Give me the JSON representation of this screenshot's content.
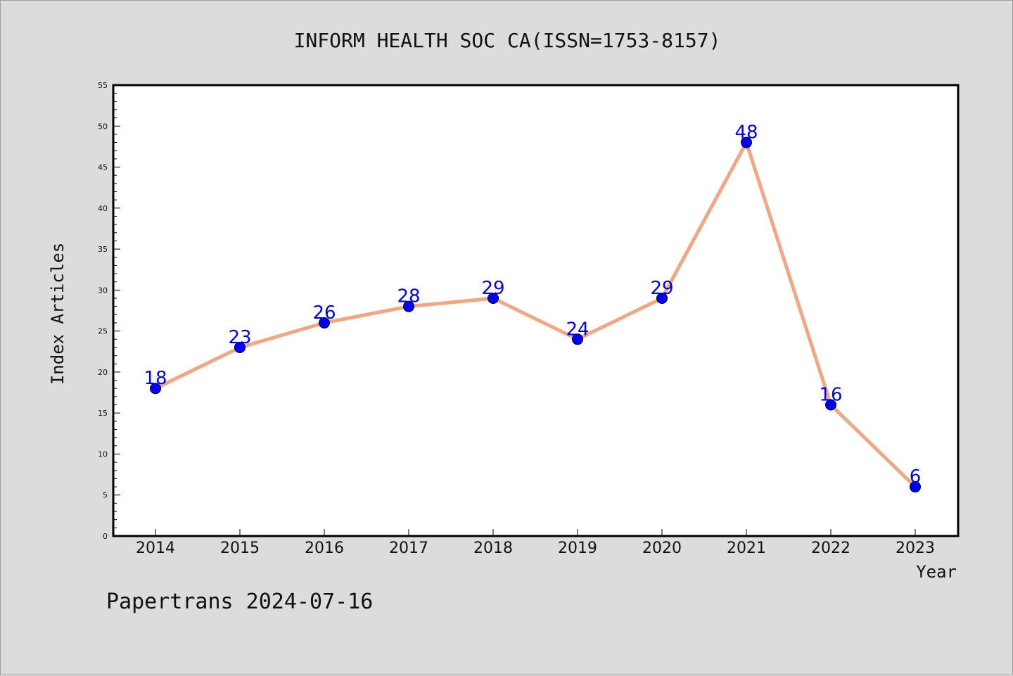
{
  "footer": "Papertrans 2024-07-16",
  "colors": {
    "background": "#dcdcdc",
    "plot_area": "#ffffff",
    "line": "#f4a582",
    "marker": "#0000ff",
    "label": "#0000ff"
  },
  "chart_data": {
    "type": "line",
    "title": "INFORM HEALTH SOC CA(ISSN=1753-8157)",
    "xlabel": "Year",
    "ylabel": "Index Articles",
    "categories": [
      "2014",
      "2015",
      "2016",
      "2017",
      "2018",
      "2019",
      "2020",
      "2021",
      "2022",
      "2023"
    ],
    "series": [
      {
        "values": [
          18,
          23,
          26,
          28,
          29,
          24,
          29,
          48,
          16,
          6
        ]
      }
    ],
    "ylim": [
      0,
      55
    ],
    "yticks": [
      0,
      5,
      10,
      15,
      20,
      25,
      30,
      35,
      40,
      45,
      50,
      55
    ],
    "data_labels": [
      "18",
      "23",
      "26",
      "28",
      "29",
      "24",
      "29",
      "48",
      "16",
      "6"
    ],
    "grid": false,
    "legend": "none"
  }
}
